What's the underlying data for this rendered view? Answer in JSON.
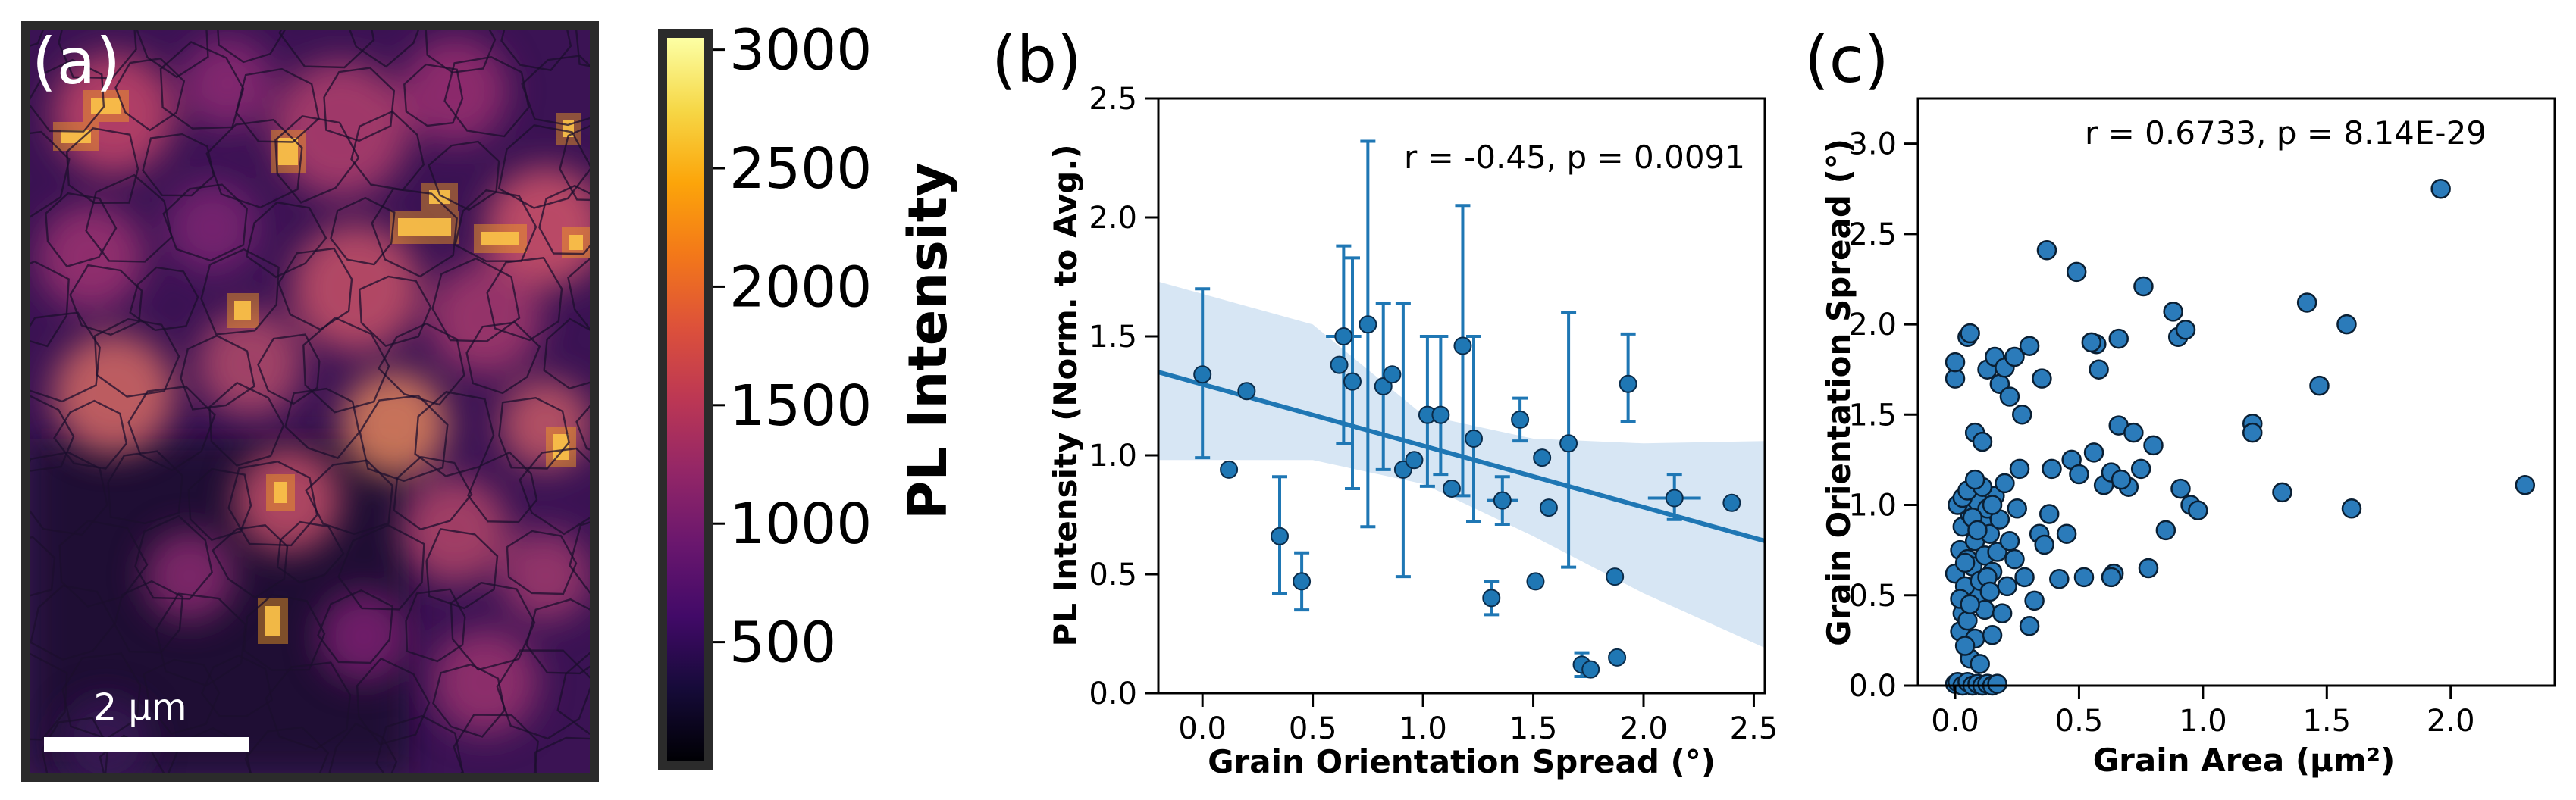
{
  "panel_a": {
    "label": "(a)",
    "scalebar_label": "2 µm",
    "colorbar": {
      "label": "PL Intensity",
      "ticks": [
        500,
        1000,
        1500,
        2000,
        2500,
        3000
      ],
      "tick_labels": [
        "500",
        "1000",
        "1500",
        "2000",
        "2500",
        "3000"
      ],
      "range": [
        0,
        3050
      ]
    },
    "colormap": "inferno",
    "background_color": "#3b1354",
    "frame_color": "#2b2b2b",
    "boundary_color": "#1c0f2e",
    "hotspot_color": "#fcd86a"
  },
  "chart_data": [
    {
      "panel": "(b)",
      "type": "scatter",
      "xlabel": "Grain Orientation Spread (°)",
      "ylabel": "PL Intensity (Norm. to Avg.)",
      "annotation": "r = -0.45, p = 0.0091",
      "xlim": [
        -0.2,
        2.55
      ],
      "ylim": [
        0.0,
        2.5
      ],
      "xticks": [
        0.0,
        0.5,
        1.0,
        1.5,
        2.0,
        2.5
      ],
      "xtick_labels": [
        "0.0",
        "0.5",
        "1.0",
        "1.5",
        "2.0",
        "2.5"
      ],
      "yticks": [
        0.0,
        0.5,
        1.0,
        1.5,
        2.0,
        2.5
      ],
      "ytick_labels": [
        "0.0",
        "0.5",
        "1.0",
        "1.5",
        "2.0",
        "2.5"
      ],
      "color": "#1f77b4",
      "band_color": "#c6dbef",
      "regression": {
        "x": [
          -0.2,
          2.55
        ],
        "y": [
          1.35,
          0.64
        ]
      },
      "ci_band": {
        "x": [
          -0.2,
          0.5,
          1.0,
          1.5,
          2.0,
          2.55
        ],
        "lower": [
          0.98,
          0.98,
          0.88,
          0.66,
          0.42,
          0.19
        ],
        "upper": [
          1.73,
          1.55,
          1.17,
          1.07,
          1.05,
          1.06
        ]
      },
      "points": [
        {
          "x": 0.0,
          "y": 1.34,
          "yerr": [
            0.35,
            0.36
          ]
        },
        {
          "x": 0.12,
          "y": 0.94
        },
        {
          "x": 0.2,
          "y": 1.27
        },
        {
          "x": 0.35,
          "y": 0.66,
          "yerr": [
            0.24,
            0.25
          ]
        },
        {
          "x": 0.45,
          "y": 0.47,
          "yerr": [
            0.12,
            0.12
          ]
        },
        {
          "x": 0.62,
          "y": 1.38
        },
        {
          "x": 0.64,
          "y": 1.5,
          "yerr": [
            0.45,
            0.38
          ],
          "xerr": 0.08
        },
        {
          "x": 0.68,
          "y": 1.31,
          "yerr": [
            0.45,
            0.52
          ]
        },
        {
          "x": 0.75,
          "y": 1.55,
          "yerr": [
            0.85,
            0.77
          ]
        },
        {
          "x": 0.82,
          "y": 1.29,
          "yerr": [
            0.35,
            0.35
          ]
        },
        {
          "x": 0.86,
          "y": 1.34
        },
        {
          "x": 0.91,
          "y": 0.94,
          "yerr": [
            0.45,
            0.7
          ]
        },
        {
          "x": 0.96,
          "y": 0.98
        },
        {
          "x": 1.02,
          "y": 1.17,
          "yerr": [
            0.3,
            0.33
          ]
        },
        {
          "x": 1.08,
          "y": 1.17,
          "yerr": [
            0.25,
            0.33
          ]
        },
        {
          "x": 1.13,
          "y": 0.86,
          "xerr": 0.04
        },
        {
          "x": 1.18,
          "y": 1.46,
          "yerr": [
            0.63,
            0.59
          ]
        },
        {
          "x": 1.23,
          "y": 1.07,
          "yerr": [
            0.35,
            0.43
          ]
        },
        {
          "x": 1.31,
          "y": 0.4,
          "yerr": [
            0.07,
            0.07
          ]
        },
        {
          "x": 1.36,
          "y": 0.81,
          "yerr": [
            0.1,
            0.1
          ],
          "xerr": 0.07
        },
        {
          "x": 1.44,
          "y": 1.15,
          "yerr": [
            0.09,
            0.09
          ]
        },
        {
          "x": 1.51,
          "y": 0.47
        },
        {
          "x": 1.54,
          "y": 0.99
        },
        {
          "x": 1.57,
          "y": 0.78
        },
        {
          "x": 1.66,
          "y": 1.05,
          "yerr": [
            0.52,
            0.55
          ]
        },
        {
          "x": 1.72,
          "y": 0.12,
          "yerr": [
            0.05,
            0.05
          ]
        },
        {
          "x": 1.76,
          "y": 0.1
        },
        {
          "x": 1.87,
          "y": 0.49
        },
        {
          "x": 1.88,
          "y": 0.15
        },
        {
          "x": 1.93,
          "y": 1.3,
          "yerr": [
            0.16,
            0.21
          ]
        },
        {
          "x": 2.14,
          "y": 0.82,
          "yerr": [
            0.09,
            0.1
          ],
          "xerr": 0.12
        },
        {
          "x": 2.4,
          "y": 0.8
        }
      ]
    },
    {
      "panel": "(c)",
      "type": "scatter",
      "xlabel": "Grain Area (µm²)",
      "ylabel": "Grain Orientation Spread (°)",
      "annotation": "r = 0.6733, p = 8.14E-29",
      "xlim": [
        -0.15,
        2.42
      ],
      "ylim": [
        0.0,
        3.25
      ],
      "xticks": [
        0.0,
        0.5,
        1.0,
        1.5,
        2.0
      ],
      "xtick_labels": [
        "0.0",
        "0.5",
        "1.0",
        "1.5",
        "2.0"
      ],
      "yticks": [
        0.0,
        0.5,
        1.0,
        1.5,
        2.0,
        2.5,
        3.0
      ],
      "ytick_labels": [
        "0.0",
        "0.5",
        "1.0",
        "1.5",
        "2.0",
        "2.5",
        "3.0"
      ],
      "color": "#2b7bba",
      "points": [
        [
          0.0,
          0.01
        ],
        [
          0.01,
          0.02
        ],
        [
          0.03,
          0.0
        ],
        [
          0.05,
          0.02
        ],
        [
          0.07,
          0.0
        ],
        [
          0.09,
          0.01
        ],
        [
          0.11,
          0.0
        ],
        [
          0.13,
          0.01
        ],
        [
          0.15,
          0.0
        ],
        [
          0.17,
          0.01
        ],
        [
          0.02,
          0.3
        ],
        [
          0.03,
          0.4
        ],
        [
          0.05,
          0.36
        ],
        [
          0.06,
          0.15
        ],
        [
          0.08,
          0.26
        ],
        [
          0.1,
          0.12
        ],
        [
          0.04,
          0.22
        ],
        [
          0.09,
          0.5
        ],
        [
          0.12,
          0.42
        ],
        [
          0.15,
          0.28
        ],
        [
          0.0,
          0.62
        ],
        [
          0.02,
          0.75
        ],
        [
          0.03,
          0.88
        ],
        [
          0.04,
          0.55
        ],
        [
          0.05,
          0.7
        ],
        [
          0.06,
          0.95
        ],
        [
          0.07,
          0.66
        ],
        [
          0.08,
          0.8
        ],
        [
          0.09,
          1.02
        ],
        [
          0.1,
          0.58
        ],
        [
          0.11,
          0.9
        ],
        [
          0.12,
          0.72
        ],
        [
          0.13,
          0.98
        ],
        [
          0.14,
          0.84
        ],
        [
          0.15,
          0.63
        ],
        [
          0.16,
          1.05
        ],
        [
          0.01,
          1.0
        ],
        [
          0.03,
          1.04
        ],
        [
          0.05,
          1.08
        ],
        [
          0.07,
          0.93
        ],
        [
          0.09,
          0.86
        ],
        [
          0.11,
          1.1
        ],
        [
          0.13,
          0.6
        ],
        [
          0.02,
          0.48
        ],
        [
          0.06,
          0.45
        ],
        [
          0.14,
          0.52
        ],
        [
          0.17,
          0.74
        ],
        [
          0.18,
          0.92
        ],
        [
          0.08,
          1.14
        ],
        [
          0.04,
          0.68
        ],
        [
          0.0,
          1.7
        ],
        [
          0.0,
          1.79
        ],
        [
          0.05,
          1.93
        ],
        [
          0.06,
          1.95
        ],
        [
          0.08,
          1.4
        ],
        [
          0.11,
          1.35
        ],
        [
          0.13,
          1.75
        ],
        [
          0.16,
          1.82
        ],
        [
          0.18,
          1.67
        ],
        [
          0.2,
          1.76
        ],
        [
          0.22,
          1.6
        ],
        [
          0.24,
          1.82
        ],
        [
          0.27,
          1.5
        ],
        [
          0.3,
          1.88
        ],
        [
          0.35,
          1.7
        ],
        [
          0.37,
          2.41
        ],
        [
          0.26,
          1.2
        ],
        [
          0.25,
          0.98
        ],
        [
          0.22,
          0.8
        ],
        [
          0.21,
          0.55
        ],
        [
          0.2,
          1.12
        ],
        [
          0.19,
          0.4
        ],
        [
          0.24,
          0.7
        ],
        [
          0.28,
          0.6
        ],
        [
          0.32,
          0.47
        ],
        [
          0.34,
          0.84
        ],
        [
          0.38,
          0.95
        ],
        [
          0.39,
          1.2
        ],
        [
          0.3,
          0.33
        ],
        [
          0.36,
          0.78
        ],
        [
          0.47,
          1.25
        ],
        [
          0.49,
          2.29
        ],
        [
          0.5,
          1.17
        ],
        [
          0.52,
          0.6
        ],
        [
          0.56,
          1.29
        ],
        [
          0.57,
          1.89
        ],
        [
          0.58,
          1.75
        ],
        [
          0.6,
          1.11
        ],
        [
          0.63,
          1.18
        ],
        [
          0.64,
          0.62
        ],
        [
          0.66,
          1.92
        ],
        [
          0.66,
          1.44
        ],
        [
          0.7,
          1.1
        ],
        [
          0.72,
          1.4
        ],
        [
          0.75,
          1.2
        ],
        [
          0.78,
          0.65
        ],
        [
          0.8,
          1.33
        ],
        [
          0.85,
          0.86
        ],
        [
          0.88,
          2.07
        ],
        [
          0.9,
          1.93
        ],
        [
          0.91,
          1.09
        ],
        [
          0.93,
          1.97
        ],
        [
          0.95,
          1.0
        ],
        [
          0.63,
          0.6
        ],
        [
          0.42,
          0.59
        ],
        [
          0.45,
          0.84
        ],
        [
          0.67,
          1.14
        ],
        [
          0.76,
          2.21
        ],
        [
          0.98,
          0.97
        ],
        [
          1.2,
          1.45
        ],
        [
          1.2,
          1.4
        ],
        [
          1.32,
          1.07
        ],
        [
          1.42,
          2.12
        ],
        [
          1.47,
          1.66
        ],
        [
          1.58,
          2.0
        ],
        [
          1.6,
          0.98
        ],
        [
          1.96,
          2.75
        ],
        [
          2.3,
          1.11
        ],
        [
          0.55,
          1.9
        ],
        [
          0.15,
          1.0
        ]
      ]
    }
  ]
}
